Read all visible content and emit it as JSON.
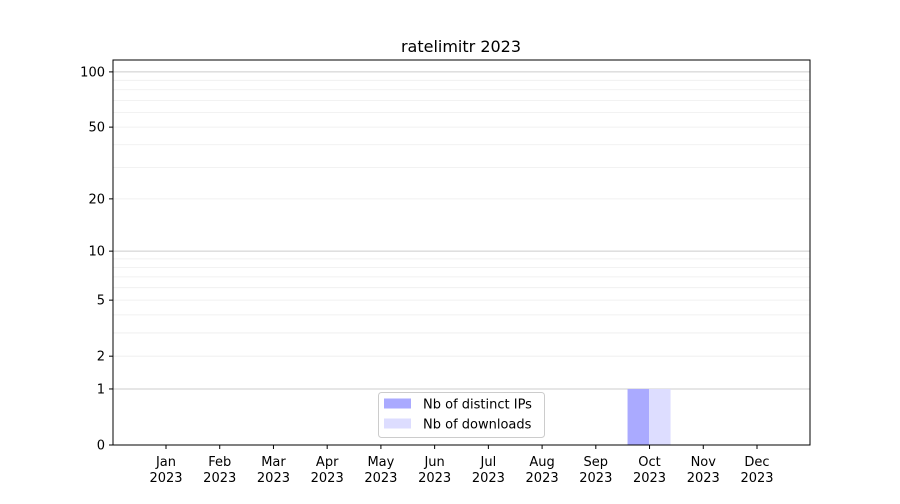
{
  "chart_data": {
    "type": "bar",
    "title": "ratelimitr 2023",
    "xlabel": "",
    "ylabel": "",
    "yscale": "symlog (log10(1+y))",
    "ylim": [
      0,
      116
    ],
    "yticks": [
      0,
      1,
      2,
      5,
      10,
      20,
      50,
      100
    ],
    "ytick_labels": [
      "0",
      "1",
      "2",
      "5",
      "10",
      "20",
      "50",
      "100"
    ],
    "grid": true,
    "legend_position": "lower-center",
    "categories": [
      "Jan\n2023",
      "Feb\n2023",
      "Mar\n2023",
      "Apr\n2023",
      "May\n2023",
      "Jun\n2023",
      "Jul\n2023",
      "Aug\n2023",
      "Sep\n2023",
      "Oct\n2023",
      "Nov\n2023",
      "Dec\n2023"
    ],
    "category_months": [
      "Jan",
      "Feb",
      "Mar",
      "Apr",
      "May",
      "Jun",
      "Jul",
      "Aug",
      "Sep",
      "Oct",
      "Nov",
      "Dec"
    ],
    "category_year": "2023",
    "series": [
      {
        "name": "Nb of distinct IPs",
        "color": "#aaaaff",
        "values": [
          0,
          0,
          0,
          0,
          0,
          0,
          0,
          0,
          0,
          1,
          0,
          0
        ]
      },
      {
        "name": "Nb of downloads",
        "color": "#ddddff",
        "values": [
          0,
          0,
          0,
          0,
          0,
          0,
          0,
          0,
          0,
          1,
          0,
          0
        ]
      }
    ]
  }
}
